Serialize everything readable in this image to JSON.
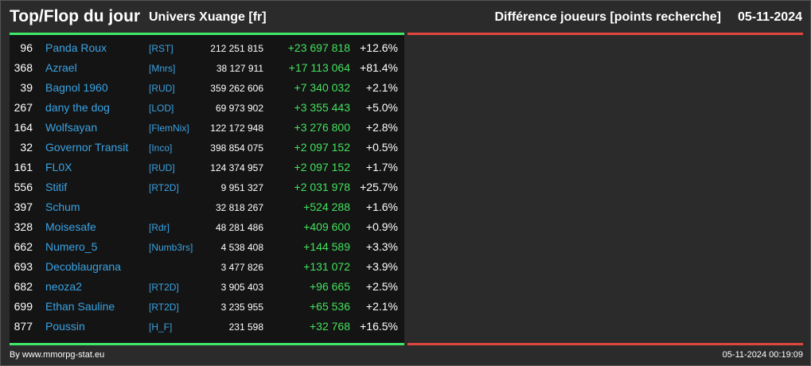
{
  "header": {
    "title": "Top/Flop du jour",
    "subtitle": "Univers Xuange [fr]",
    "metric_label": "Différence joueurs [points recherche]",
    "date": "05-11-2024"
  },
  "colors": {
    "background": "#2b2b2b",
    "panel": "#141414",
    "top_accent": "#3ee86a",
    "flop_accent": "#e0473f",
    "player_link": "#3aa3e3",
    "gain": "#44e25e"
  },
  "top_rows": [
    {
      "rank": "96",
      "name": "Panda Roux",
      "alliance": "[RST]",
      "points": "212 251 815",
      "diff": "+23 697 818",
      "pct": "+12.6%"
    },
    {
      "rank": "368",
      "name": "Azrael",
      "alliance": "[Mnrs]",
      "points": "38 127 911",
      "diff": "+17 113 064",
      "pct": "+81.4%"
    },
    {
      "rank": "39",
      "name": "Bagnol 1960",
      "alliance": "[RUD]",
      "points": "359 262 606",
      "diff": "+7 340 032",
      "pct": "+2.1%"
    },
    {
      "rank": "267",
      "name": "dany the dog",
      "alliance": "[LOD]",
      "points": "69 973 902",
      "diff": "+3 355 443",
      "pct": "+5.0%"
    },
    {
      "rank": "164",
      "name": "Wolfsayan",
      "alliance": "[FlemNix]",
      "points": "122 172 948",
      "diff": "+3 276 800",
      "pct": "+2.8%"
    },
    {
      "rank": "32",
      "name": "Governor Transit",
      "alliance": "[Inco]",
      "points": "398 854 075",
      "diff": "+2 097 152",
      "pct": "+0.5%"
    },
    {
      "rank": "161",
      "name": "FL0X",
      "alliance": "[RUD]",
      "points": "124 374 957",
      "diff": "+2 097 152",
      "pct": "+1.7%"
    },
    {
      "rank": "556",
      "name": "Stitif",
      "alliance": "[RT2D]",
      "points": "9 951 327",
      "diff": "+2 031 978",
      "pct": "+25.7%"
    },
    {
      "rank": "397",
      "name": "Schum",
      "alliance": "",
      "points": "32 818 267",
      "diff": "+524 288",
      "pct": "+1.6%"
    },
    {
      "rank": "328",
      "name": "Moisesafe",
      "alliance": "[Rdr]",
      "points": "48 281 486",
      "diff": "+409 600",
      "pct": "+0.9%"
    },
    {
      "rank": "662",
      "name": "Numero_5",
      "alliance": "[Numb3rs]",
      "points": "4 538 408",
      "diff": "+144 589",
      "pct": "+3.3%"
    },
    {
      "rank": "693",
      "name": "Decoblaugrana",
      "alliance": "",
      "points": "3 477 826",
      "diff": "+131 072",
      "pct": "+3.9%"
    },
    {
      "rank": "682",
      "name": "neoza2",
      "alliance": "[RT2D]",
      "points": "3 905 403",
      "diff": "+96 665",
      "pct": "+2.5%"
    },
    {
      "rank": "699",
      "name": "Ethan Sauline",
      "alliance": "[RT2D]",
      "points": "3 235 955",
      "diff": "+65 536",
      "pct": "+2.1%"
    },
    {
      "rank": "877",
      "name": "Poussin",
      "alliance": "[H_F]",
      "points": "231 598",
      "diff": "+32 768",
      "pct": "+16.5%"
    }
  ],
  "footer": {
    "credit": "By www.mmorpg-stat.eu",
    "timestamp": "05-11-2024 00:19:09"
  }
}
